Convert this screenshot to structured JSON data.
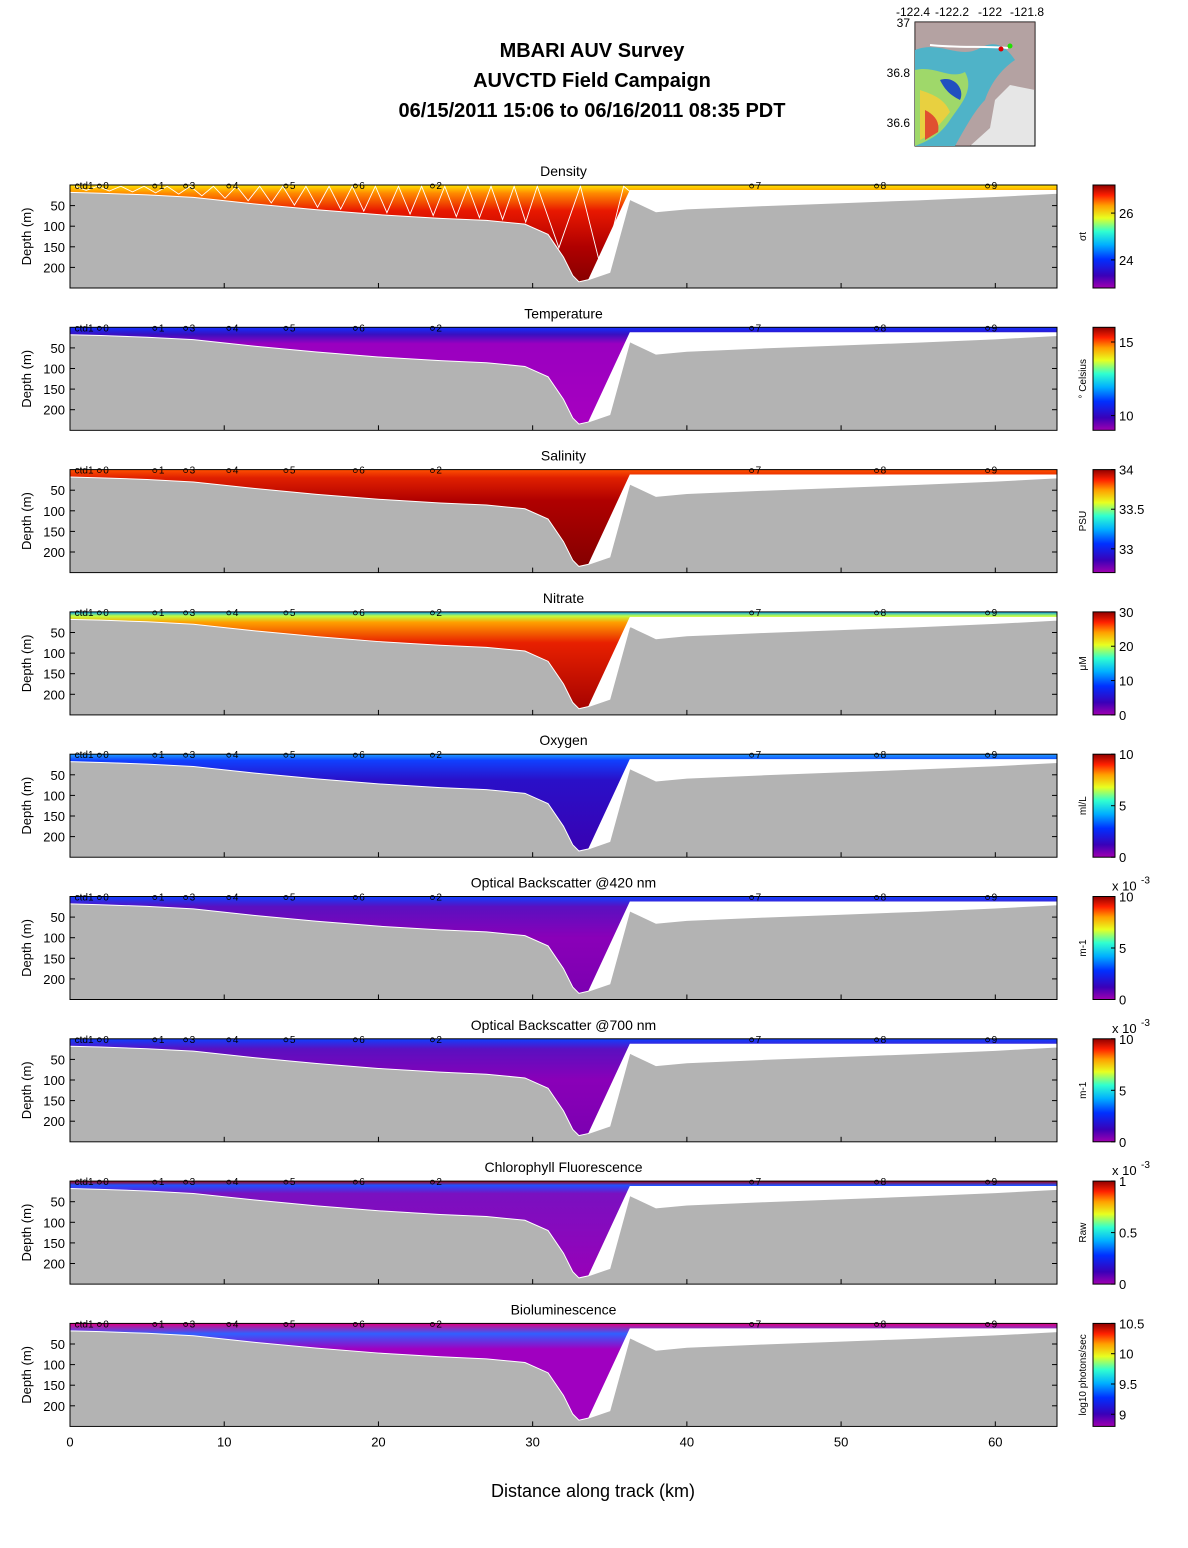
{
  "title_lines": [
    "MBARI AUV Survey",
    "AUVCTD Field Campaign",
    "06/15/2011 15:06  to 06/16/2011 08:35 PDT"
  ],
  "xlabel": "Distance along track (km)",
  "ylabel": "Depth (m)",
  "colors": {
    "bathymetry": "#b3b3b3",
    "water_gap": "#ffffff",
    "track": "#ffffff"
  },
  "map_inset": {
    "lon_ticks": [
      "-122.4",
      "-122.2",
      "-122",
      "-121.8"
    ],
    "lat_ticks": [
      "37",
      "36.8",
      "36.6"
    ]
  },
  "chart_data": {
    "type": "heatmap",
    "xlim": [
      0,
      64
    ],
    "ylim": [
      0,
      250
    ],
    "x_ticks": [
      0,
      10,
      20,
      30,
      40,
      50,
      60
    ],
    "y_ticks": [
      50,
      100,
      150,
      200
    ],
    "stations": [
      {
        "label": "ctd1",
        "x": 0.3
      },
      {
        "label": "0",
        "x": 1.9
      },
      {
        "label": "1",
        "x": 5.5
      },
      {
        "label": "3",
        "x": 7.5
      },
      {
        "label": "4",
        "x": 10.3
      },
      {
        "label": "5",
        "x": 14
      },
      {
        "label": "6",
        "x": 18.5
      },
      {
        "label": "2",
        "x": 23.5
      },
      {
        "label": "7",
        "x": 44.2
      },
      {
        "label": "8",
        "x": 52.3
      },
      {
        "label": "9",
        "x": 59.5
      }
    ],
    "bottom_profile": {
      "x": [
        0,
        2,
        5,
        8,
        12,
        16,
        20,
        24,
        27,
        29.5,
        31,
        32,
        32.6,
        33,
        33.6,
        35,
        36.3,
        38,
        40,
        45,
        50,
        55,
        60,
        64
      ],
      "depth": [
        18,
        20,
        24,
        30,
        46,
        60,
        72,
        81,
        86,
        95,
        120,
        175,
        220,
        235,
        230,
        212,
        35,
        65,
        58,
        50,
        43,
        36,
        28,
        20
      ]
    },
    "panels": [
      {
        "title": "Density",
        "colorbar_label": "σt",
        "cmin": 22.8,
        "cmax": 27.2,
        "colorbar_ticks": [
          "26",
          "24"
        ],
        "colorbar_tick_values": [
          26,
          24
        ]
      },
      {
        "title": "Temperature",
        "colorbar_label": "° Celsius",
        "cmin": 9,
        "cmax": 16,
        "colorbar_ticks": [
          "15",
          "10"
        ],
        "colorbar_tick_values": [
          15,
          10
        ]
      },
      {
        "title": "Salinity",
        "colorbar_label": "PSU",
        "cmin": 32.7,
        "cmax": 34,
        "colorbar_ticks": [
          "34",
          "33.5",
          "33"
        ],
        "colorbar_tick_values": [
          34,
          33.5,
          33
        ]
      },
      {
        "title": "Nitrate",
        "colorbar_label": "μM",
        "cmin": 0,
        "cmax": 30,
        "colorbar_ticks": [
          "30",
          "20",
          "10",
          "0"
        ],
        "colorbar_tick_values": [
          30,
          20,
          10,
          0
        ]
      },
      {
        "title": "Oxygen",
        "colorbar_label": "ml/L",
        "cmin": 0,
        "cmax": 10,
        "colorbar_ticks": [
          "10",
          "5",
          "0"
        ],
        "colorbar_tick_values": [
          10,
          5,
          0
        ]
      },
      {
        "title": "Optical Backscatter @420 nm",
        "colorbar_label": "m-1",
        "cmin": 0,
        "cmax": 10,
        "colorbar_ticks": [
          "10",
          "5",
          "0"
        ],
        "colorbar_tick_values": [
          10,
          5,
          0
        ],
        "multiplier": "x 10",
        "multiplier_exp": "-3"
      },
      {
        "title": "Optical Backscatter @700 nm",
        "colorbar_label": "m-1",
        "cmin": 0,
        "cmax": 10,
        "colorbar_ticks": [
          "10",
          "5",
          "0"
        ],
        "colorbar_tick_values": [
          10,
          5,
          0
        ],
        "multiplier": "x 10",
        "multiplier_exp": "-3"
      },
      {
        "title": "Chlorophyll Fluorescence",
        "colorbar_label": "Raw",
        "cmin": 0,
        "cmax": 1,
        "colorbar_ticks": [
          "1",
          "0.5",
          "0"
        ],
        "colorbar_tick_values": [
          1,
          0.5,
          0
        ],
        "multiplier": "x 10",
        "multiplier_exp": "-3"
      },
      {
        "title": "Bioluminescence",
        "colorbar_label": "log10 photons/sec",
        "cmin": 8.8,
        "cmax": 10.5,
        "colorbar_ticks": [
          "10.5",
          "10",
          "9.5",
          "9"
        ],
        "colorbar_tick_values": [
          10.5,
          10,
          9.5,
          9
        ]
      }
    ]
  }
}
